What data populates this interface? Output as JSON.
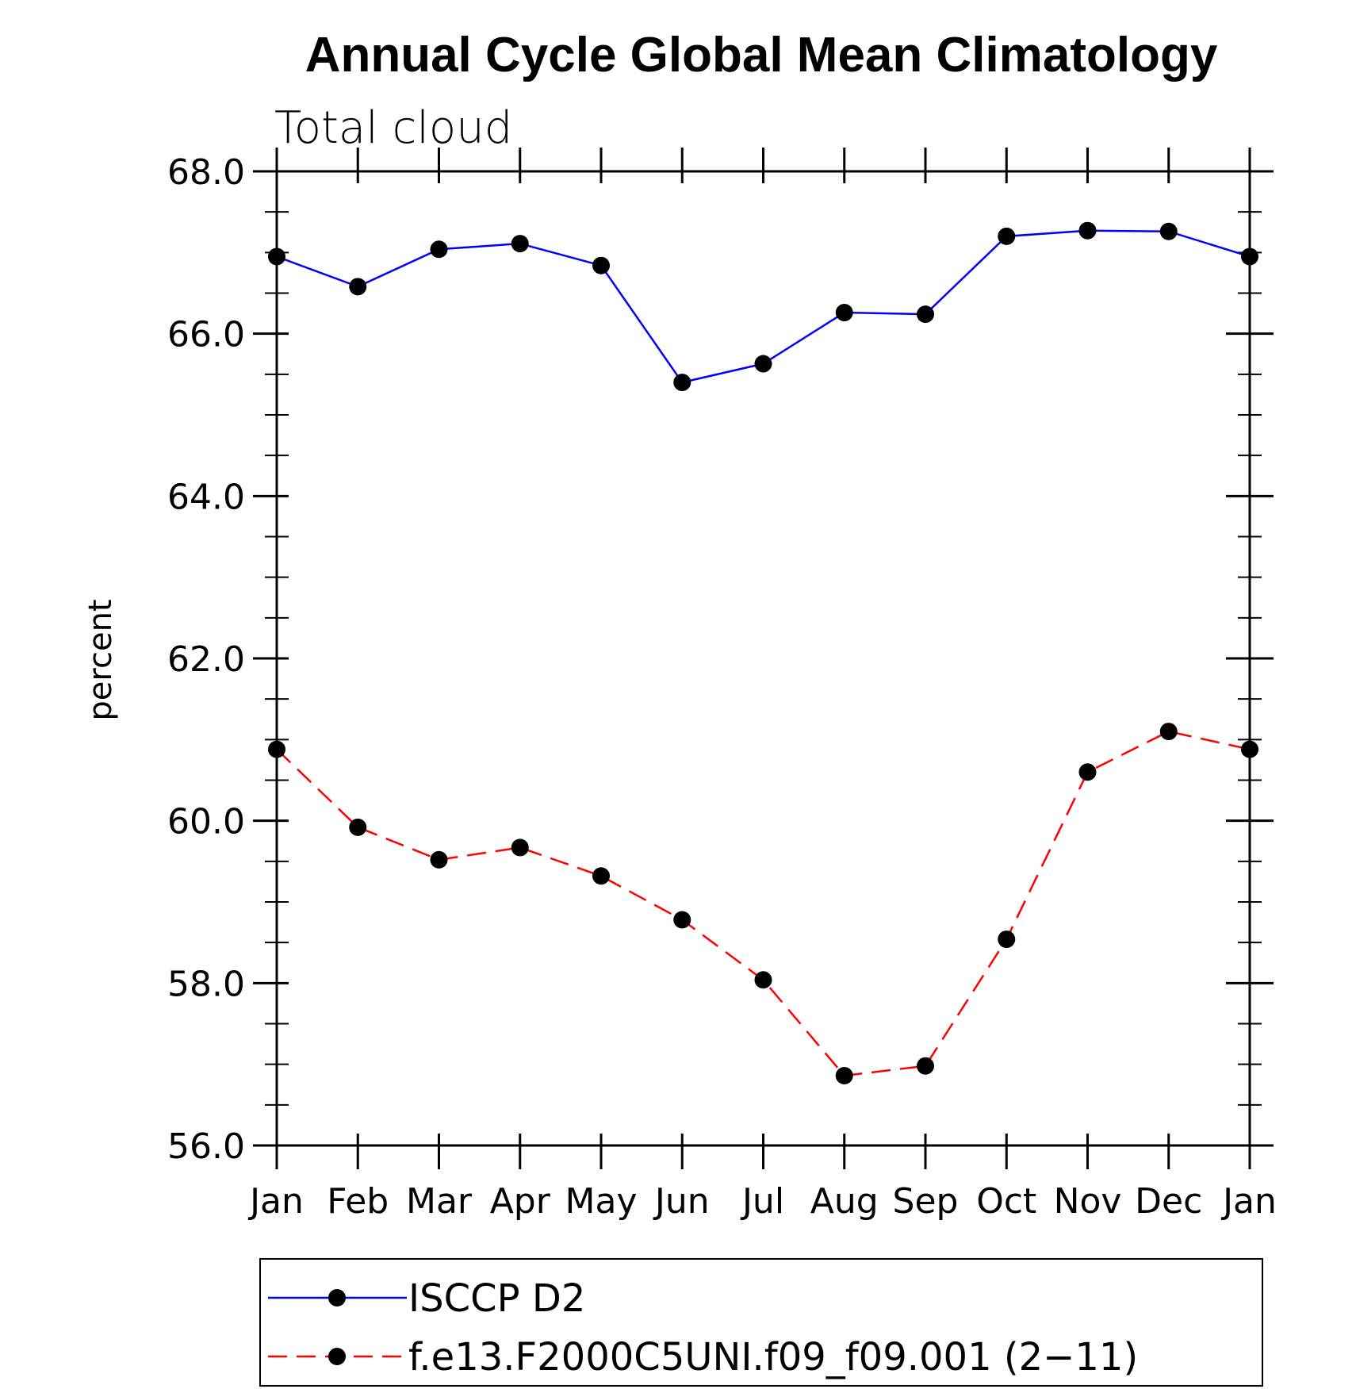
{
  "chart_data": {
    "type": "line",
    "title": "Annual Cycle Global Mean Climatology",
    "subtitle": "Total cloud",
    "xlabel": "",
    "ylabel": "percent",
    "ylim": [
      56.0,
      68.0
    ],
    "yticks": [
      "56.0",
      "58.0",
      "60.0",
      "62.0",
      "64.0",
      "66.0",
      "68.0"
    ],
    "categories": [
      "Jan",
      "Feb",
      "Mar",
      "Apr",
      "May",
      "Jun",
      "Jul",
      "Aug",
      "Sep",
      "Oct",
      "Nov",
      "Dec",
      "Jan"
    ],
    "grid": false,
    "legend_position": "bottom",
    "series": [
      {
        "name": "ISCCP D2",
        "color": "#0000ff",
        "line_style": "solid",
        "marker": "filled-circle",
        "values": [
          66.95,
          66.58,
          67.04,
          67.11,
          66.84,
          65.4,
          65.63,
          66.26,
          66.24,
          67.2,
          67.27,
          67.26,
          66.95
        ]
      },
      {
        "name": "f.e13.F2000C5UNI.f09_f09.001 (2−11)",
        "color": "#ff0000",
        "line_style": "dashed",
        "marker": "filled-circle",
        "values": [
          60.88,
          59.92,
          59.52,
          59.67,
          59.32,
          58.78,
          58.04,
          56.86,
          56.98,
          58.54,
          60.6,
          61.1,
          60.88
        ]
      }
    ]
  }
}
